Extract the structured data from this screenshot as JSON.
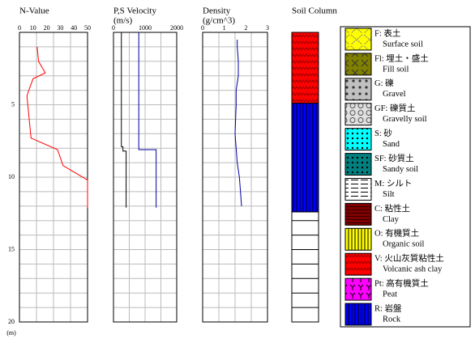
{
  "depth": {
    "ylim": [
      0,
      20
    ],
    "yticks": [
      5,
      10,
      15,
      20
    ],
    "ygrid": [
      1,
      2,
      3,
      4,
      5,
      6,
      7,
      8,
      9,
      10,
      11,
      12,
      13,
      14,
      15,
      16,
      17,
      18,
      19
    ],
    "unit": "(m)"
  },
  "chart_data": [
    {
      "type": "line",
      "title": "N-Value",
      "xlim": [
        0,
        50
      ],
      "xticks": [
        0,
        10,
        20,
        30,
        40,
        50
      ],
      "xgrid": [
        12.5,
        25,
        37.5
      ],
      "series": [
        {
          "color": "#ff0000",
          "depth": [
            1,
            2,
            2.8,
            3.2,
            4.1,
            4.4,
            7.3,
            8.1,
            9.2,
            10.2,
            12.1
          ],
          "values": [
            13,
            14,
            19,
            10,
            6.5,
            5.5,
            8.5,
            28,
            32,
            50,
            50
          ]
        }
      ]
    },
    {
      "type": "line",
      "title": "P,S Velocity",
      "subtitle": "(m/s)",
      "xlim": [
        0,
        2000
      ],
      "xticks": [
        0,
        1000,
        2000
      ],
      "xgrid": [
        500,
        1000,
        1500
      ],
      "series": [
        {
          "color": "#000000",
          "depth": [
            0,
            7.9,
            7.9,
            8.2,
            8.2,
            12.1
          ],
          "values": [
            250,
            250,
            300,
            300,
            400,
            400
          ]
        },
        {
          "color": "#0000a0",
          "depth": [
            0,
            8.1,
            8.1,
            12.1
          ],
          "values": [
            800,
            800,
            1350,
            1350
          ]
        }
      ]
    },
    {
      "type": "line",
      "title": "Density",
      "subtitle": "(g/cm^3)",
      "xlim": [
        0,
        3
      ],
      "xticks": [
        0,
        1,
        2,
        3
      ],
      "xgrid": [
        0.75,
        1.5,
        2.25
      ],
      "series": [
        {
          "color": "#0000a0",
          "depth": [
            0.5,
            1,
            2,
            3,
            4,
            5,
            7,
            8,
            9,
            10,
            11,
            12
          ],
          "values": [
            1.6,
            1.6,
            1.65,
            1.65,
            1.55,
            1.55,
            1.5,
            1.55,
            1.6,
            1.7,
            1.75,
            1.8
          ]
        }
      ]
    },
    {
      "type": "column",
      "title": "Soil Column",
      "layers": [
        {
          "pattern": "volcanic",
          "top": 0,
          "bottom": 4.9
        },
        {
          "pattern": "rock",
          "top": 4.9,
          "bottom": 12.4
        }
      ]
    }
  ],
  "legend": [
    {
      "label": "F: 表土",
      "sub": "Surface soil",
      "pattern": "surface"
    },
    {
      "label": "Fl: 埋土・盛土",
      "sub": "Fill soil",
      "pattern": "fill"
    },
    {
      "label": "G: 礫",
      "sub": "Gravel",
      "pattern": "gravel"
    },
    {
      "label": "GF: 礫質土",
      "sub": "Gravelly soil",
      "pattern": "gravelly"
    },
    {
      "label": "S: 砂",
      "sub": "Sand",
      "pattern": "sand"
    },
    {
      "label": "SF: 砂質土",
      "sub": "Sandy soil",
      "pattern": "sandy"
    },
    {
      "label": "M: シルト",
      "sub": "Silt",
      "pattern": "silt"
    },
    {
      "label": "C: 粘性土",
      "sub": "Clay",
      "pattern": "clay"
    },
    {
      "label": "O: 有機質土",
      "sub": "Organic soil",
      "pattern": "organic"
    },
    {
      "label": "V: 火山灰質粘性土",
      "sub": "Volcanic ash clay",
      "pattern": "volcanic"
    },
    {
      "label": "Pt: 高有機質土",
      "sub": "Peat",
      "pattern": "peat"
    },
    {
      "label": "R: 岩盤",
      "sub": "Rock",
      "pattern": "rock"
    }
  ]
}
